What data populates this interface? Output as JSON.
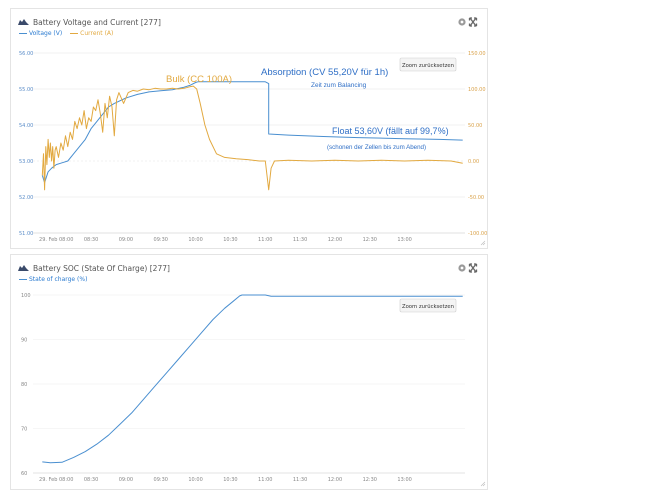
{
  "charts": [
    {
      "title": "Battery Voltage and Current [277]",
      "reset_label": "Zoom zurücksetzen",
      "legend": [
        {
          "name": "Voltage (V)",
          "color": "#4a8fd0"
        },
        {
          "name": "Current (A)",
          "color": "#e2a940"
        }
      ]
    },
    {
      "title": "Battery SOC (State Of Charge) [277]",
      "reset_label": "Zoom zurücksetzen",
      "legend": [
        {
          "name": "State of charge (%)",
          "color": "#4a8fd0"
        }
      ]
    }
  ],
  "annotations": {
    "bulk": "Bulk (CC 100A)",
    "absorption": "Absorption (CV 55,20V für 1h)",
    "balancing": "Zeit zum Balancing",
    "float": "Float 53,60V (fällt auf 99,7%)",
    "float_sub": "(schonen der Zellen bis zum Abend)"
  },
  "chart_data": [
    {
      "type": "line",
      "title": "Battery Voltage and Current [277]",
      "x_ticks": [
        "29. Feb 08:00",
        "08:30",
        "09:00",
        "09:30",
        "10:00",
        "10:30",
        "11:00",
        "11:30",
        "12:00",
        "12:30",
        "13:00"
      ],
      "y_ticks_left": [
        "51.00",
        "52.00",
        "53.00",
        "54.00",
        "55.00",
        "56.00"
      ],
      "y_ticks_right": [
        "-100.00",
        "-50.00",
        "0.00",
        "50.00",
        "100.00",
        "150.00"
      ],
      "ylim_left": [
        51,
        56
      ],
      "ylim_right": [
        -100,
        150
      ],
      "x_unit": "minutes after 08:00",
      "series": [
        {
          "name": "Voltage (V)",
          "axis": "left",
          "color": "#4a8fd0",
          "points": [
            [
              -12,
              52.6
            ],
            [
              -10,
              52.4
            ],
            [
              -7,
              52.7
            ],
            [
              -4,
              52.8
            ],
            [
              0,
              52.9
            ],
            [
              5,
              52.95
            ],
            [
              10,
              53.0
            ],
            [
              15,
              53.2
            ],
            [
              20,
              53.4
            ],
            [
              25,
              53.6
            ],
            [
              30,
              53.9
            ],
            [
              35,
              54.1
            ],
            [
              40,
              54.3
            ],
            [
              45,
              54.5
            ],
            [
              50,
              54.6
            ],
            [
              60,
              54.75
            ],
            [
              70,
              54.85
            ],
            [
              80,
              54.92
            ],
            [
              90,
              54.95
            ],
            [
              100,
              54.98
            ],
            [
              110,
              55.05
            ],
            [
              115,
              55.1
            ],
            [
              120,
              55.18
            ],
            [
              122,
              55.2
            ],
            [
              180,
              55.2
            ],
            [
              183,
              55.15
            ],
            [
              183,
              53.75
            ],
            [
              200,
              53.72
            ],
            [
              230,
              53.68
            ],
            [
              260,
              53.65
            ],
            [
              300,
              53.62
            ],
            [
              330,
              53.6
            ],
            [
              350,
              53.58
            ]
          ]
        },
        {
          "name": "Current (A)",
          "axis": "right",
          "color": "#e2a940",
          "points": [
            [
              -12,
              -20
            ],
            [
              -11,
              10
            ],
            [
              -10,
              -40
            ],
            [
              -9,
              20
            ],
            [
              -8,
              -5
            ],
            [
              -7,
              30
            ],
            [
              -6,
              5
            ],
            [
              -5,
              25
            ],
            [
              -4,
              0
            ],
            [
              -3,
              20
            ],
            [
              -2,
              -10
            ],
            [
              -1,
              15
            ],
            [
              0,
              20
            ],
            [
              2,
              5
            ],
            [
              4,
              25
            ],
            [
              6,
              15
            ],
            [
              8,
              35
            ],
            [
              10,
              20
            ],
            [
              12,
              40
            ],
            [
              14,
              30
            ],
            [
              16,
              55
            ],
            [
              18,
              45
            ],
            [
              20,
              60
            ],
            [
              22,
              50
            ],
            [
              24,
              70
            ],
            [
              26,
              45
            ],
            [
              28,
              60
            ],
            [
              30,
              55
            ],
            [
              32,
              75
            ],
            [
              34,
              70
            ],
            [
              36,
              85
            ],
            [
              38,
              65
            ],
            [
              40,
              40
            ],
            [
              42,
              80
            ],
            [
              44,
              60
            ],
            [
              46,
              90
            ],
            [
              48,
              75
            ],
            [
              50,
              35
            ],
            [
              52,
              85
            ],
            [
              54,
              95
            ],
            [
              58,
              80
            ],
            [
              62,
              95
            ],
            [
              66,
              98
            ],
            [
              70,
              97
            ],
            [
              75,
              100
            ],
            [
              80,
              99
            ],
            [
              85,
              101
            ],
            [
              90,
              100
            ],
            [
              95,
              100
            ],
            [
              100,
              101
            ],
            [
              105,
              100
            ],
            [
              110,
              101
            ],
            [
              115,
              103
            ],
            [
              118,
              104
            ],
            [
              121,
              100
            ],
            [
              124,
              80
            ],
            [
              128,
              50
            ],
            [
              132,
              30
            ],
            [
              138,
              10
            ],
            [
              145,
              5
            ],
            [
              155,
              3
            ],
            [
              165,
              2
            ],
            [
              175,
              0
            ],
            [
              180,
              0
            ],
            [
              183,
              -40
            ],
            [
              185,
              -10
            ],
            [
              188,
              0
            ],
            [
              200,
              1
            ],
            [
              220,
              0
            ],
            [
              240,
              1
            ],
            [
              260,
              0
            ],
            [
              280,
              1
            ],
            [
              300,
              0
            ],
            [
              320,
              1
            ],
            [
              340,
              0
            ],
            [
              350,
              -3
            ]
          ]
        }
      ]
    },
    {
      "type": "line",
      "title": "Battery SOC (State Of Charge) [277]",
      "x_ticks": [
        "29. Feb 08:00",
        "08:30",
        "09:00",
        "09:30",
        "10:00",
        "10:30",
        "11:00",
        "11:30",
        "12:00",
        "12:30",
        "13:00"
      ],
      "y_ticks": [
        "60",
        "70",
        "80",
        "90",
        "100"
      ],
      "ylim": [
        60,
        100
      ],
      "x_unit": "minutes after 08:00",
      "series": [
        {
          "name": "State of charge (%)",
          "color": "#4a8fd0",
          "points": [
            [
              -12,
              62.5
            ],
            [
              -5,
              62.3
            ],
            [
              5,
              62.4
            ],
            [
              15,
              63.5
            ],
            [
              25,
              64.8
            ],
            [
              35,
              66.5
            ],
            [
              45,
              68.5
            ],
            [
              55,
              71
            ],
            [
              65,
              73.5
            ],
            [
              75,
              76.5
            ],
            [
              85,
              79.5
            ],
            [
              95,
              82.5
            ],
            [
              105,
              85.5
            ],
            [
              115,
              88.5
            ],
            [
              125,
              91.5
            ],
            [
              135,
              94.5
            ],
            [
              145,
              97
            ],
            [
              152,
              98.5
            ],
            [
              158,
              99.8
            ],
            [
              160,
              100
            ],
            [
              180,
              100
            ],
            [
              185,
              99.7
            ],
            [
              350,
              99.7
            ]
          ]
        }
      ]
    }
  ]
}
